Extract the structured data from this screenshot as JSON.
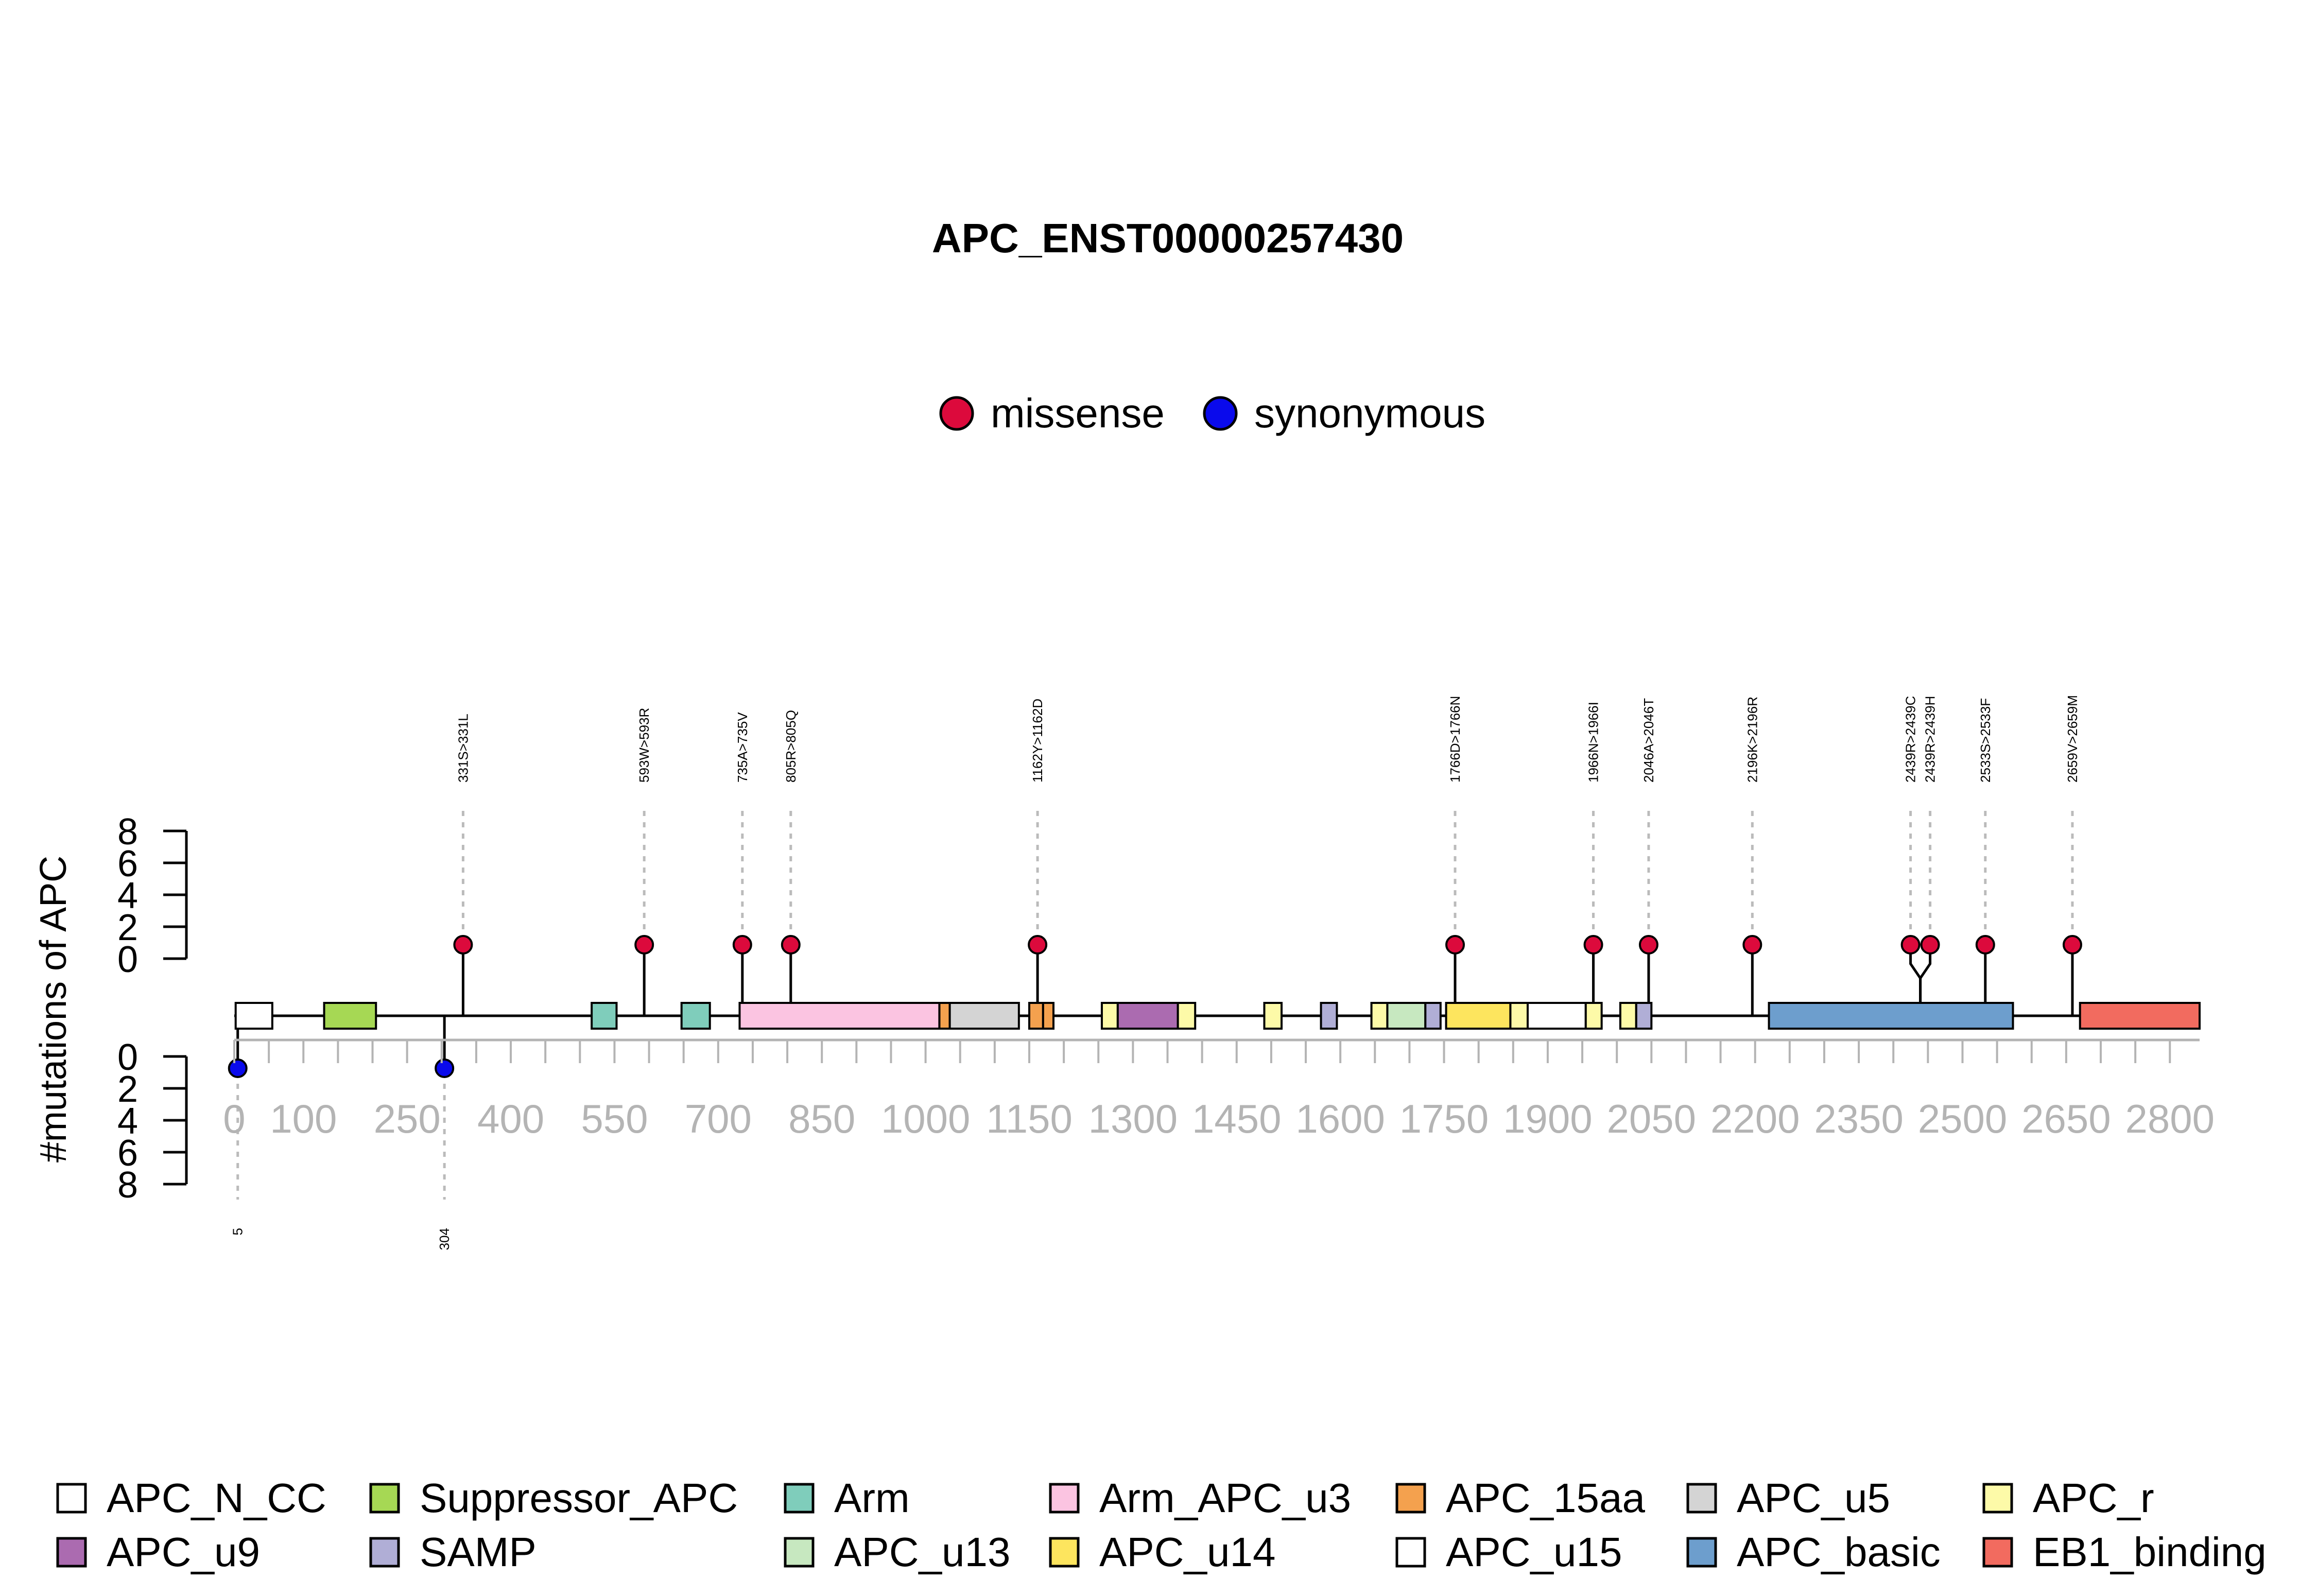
{
  "chart_data": {
    "type": "lollipop",
    "title": "APC_ENST00000257430",
    "ylabel": "#mutations of APC",
    "protein_length": 2843,
    "x_ticks": [
      0,
      100,
      250,
      400,
      550,
      700,
      850,
      1000,
      1150,
      1300,
      1450,
      1600,
      1750,
      1900,
      2050,
      2200,
      2350,
      2500,
      2650,
      2800
    ],
    "y_ticks": [
      0,
      2,
      4,
      6,
      8
    ],
    "ylim": [
      0,
      8
    ],
    "mutation_types": [
      {
        "name": "missense",
        "color": "#dc0a3c"
      },
      {
        "name": "synonymous",
        "color": "#0a0aec"
      }
    ],
    "mutations_top": [
      {
        "pos": 331,
        "label": "331S>331L",
        "count": 1,
        "type": "missense"
      },
      {
        "pos": 593,
        "label": "593W>593R",
        "count": 1,
        "type": "missense"
      },
      {
        "pos": 735,
        "label": "735A>735V",
        "count": 1,
        "type": "missense"
      },
      {
        "pos": 805,
        "label": "805R>805Q",
        "count": 1,
        "type": "missense"
      },
      {
        "pos": 1162,
        "label": "1162Y>1162D",
        "count": 1,
        "type": "missense"
      },
      {
        "pos": 1766,
        "label": "1766D>1766N",
        "count": 1,
        "type": "missense"
      },
      {
        "pos": 1966,
        "label": "1966N>1966I",
        "count": 1,
        "type": "missense"
      },
      {
        "pos": 2046,
        "label": "2046A>2046T",
        "count": 1,
        "type": "missense"
      },
      {
        "pos": 2196,
        "label": "2196K>2196R",
        "count": 1,
        "type": "missense"
      },
      {
        "pos": 2439,
        "label": "2439R>2439C",
        "count": 1,
        "type": "missense"
      },
      {
        "pos": 2439,
        "label": "2439R>2439H",
        "count": 1,
        "type": "missense"
      },
      {
        "pos": 2533,
        "label": "2533S>2533F",
        "count": 1,
        "type": "missense"
      },
      {
        "pos": 2659,
        "label": "2659V>2659M",
        "count": 1,
        "type": "missense"
      }
    ],
    "mutations_bottom": [
      {
        "pos": 5,
        "label": "5",
        "count": 1,
        "type": "synonymous"
      },
      {
        "pos": 304,
        "label": "304",
        "count": 1,
        "type": "synonymous"
      }
    ],
    "domain_types": [
      {
        "name": "APC_N_CC",
        "color": "#ffffff"
      },
      {
        "name": "Suppressor_APC",
        "color": "#a6d854"
      },
      {
        "name": "Arm",
        "color": "#7fcdbb"
      },
      {
        "name": "Arm_APC_u3",
        "color": "#fbc4e1"
      },
      {
        "name": "APC_15aa",
        "color": "#f4a14e"
      },
      {
        "name": "APC_u5",
        "color": "#d4d4d4"
      },
      {
        "name": "APC_r",
        "color": "#fdfaa8"
      },
      {
        "name": "APC_u9",
        "color": "#ab6bb0"
      },
      {
        "name": "SAMP",
        "color": "#b0aed6"
      },
      {
        "name": "APC_u13",
        "color": "#c7e8c0"
      },
      {
        "name": "APC_u14",
        "color": "#fde55e"
      },
      {
        "name": "APC_u15",
        "color": "#ffffff"
      },
      {
        "name": "APC_basic",
        "color": "#6d9ecd"
      },
      {
        "name": "EB1_binding",
        "color": "#f26b5f"
      }
    ],
    "domains": [
      {
        "type": "APC_N_CC",
        "start": 2,
        "end": 55
      },
      {
        "type": "Suppressor_APC",
        "start": 130,
        "end": 205
      },
      {
        "type": "Arm",
        "start": 517,
        "end": 553
      },
      {
        "type": "Arm",
        "start": 647,
        "end": 688
      },
      {
        "type": "Arm_APC_u3",
        "start": 731,
        "end": 1020
      },
      {
        "type": "APC_15aa",
        "start": 1020,
        "end": 1035
      },
      {
        "type": "APC_u5",
        "start": 1035,
        "end": 1135
      },
      {
        "type": "APC_15aa",
        "start": 1150,
        "end": 1170
      },
      {
        "type": "APC_15aa",
        "start": 1170,
        "end": 1185
      },
      {
        "type": "APC_r",
        "start": 1255,
        "end": 1278
      },
      {
        "type": "APC_u9",
        "start": 1278,
        "end": 1365
      },
      {
        "type": "APC_r",
        "start": 1365,
        "end": 1390
      },
      {
        "type": "APC_r",
        "start": 1490,
        "end": 1515
      },
      {
        "type": "SAMP",
        "start": 1572,
        "end": 1595
      },
      {
        "type": "APC_r",
        "start": 1645,
        "end": 1668
      },
      {
        "type": "APC_u13",
        "start": 1668,
        "end": 1723
      },
      {
        "type": "SAMP",
        "start": 1723,
        "end": 1745
      },
      {
        "type": "APC_u14",
        "start": 1753,
        "end": 1846
      },
      {
        "type": "APC_r",
        "start": 1846,
        "end": 1871
      },
      {
        "type": "APC_u15",
        "start": 1871,
        "end": 1955
      },
      {
        "type": "APC_r",
        "start": 1955,
        "end": 1978
      },
      {
        "type": "APC_r",
        "start": 2005,
        "end": 2028
      },
      {
        "type": "SAMP",
        "start": 2028,
        "end": 2050
      },
      {
        "type": "APC_basic",
        "start": 2220,
        "end": 2573
      },
      {
        "type": "EB1_binding",
        "start": 2670,
        "end": 2843
      }
    ]
  }
}
